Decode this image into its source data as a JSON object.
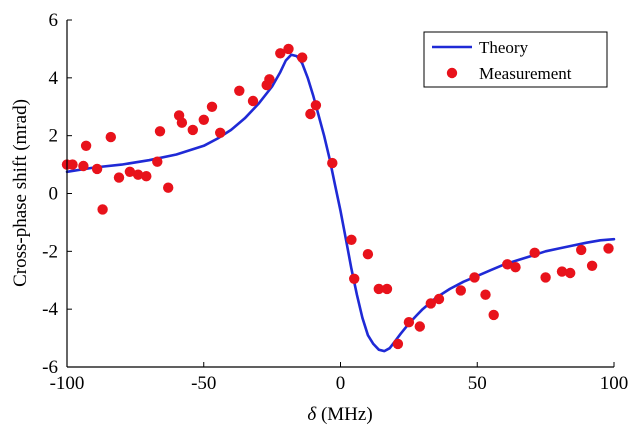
{
  "chart_data": {
    "type": "scatter",
    "xlabel_prefix": "δ",
    "xlabel_suffix": " (MHz)",
    "ylabel": "Cross-phase shift (mrad)",
    "xlim": [
      -100,
      100
    ],
    "ylim": [
      -6,
      6
    ],
    "xticks": [
      -100,
      -50,
      0,
      50,
      100
    ],
    "yticks": [
      -6,
      -4,
      -2,
      0,
      2,
      4,
      6
    ],
    "xtick_labels": [
      "-100",
      "-50",
      "0",
      "50",
      "100"
    ],
    "ytick_labels": [
      "-6",
      "-4",
      "-2",
      "0",
      "2",
      "4",
      "6"
    ],
    "grid": false,
    "legend_placement": "top-right",
    "series": [
      {
        "name": "Theory",
        "type": "line",
        "color": "#1f2ad6",
        "x": [
          -100,
          -90,
          -80,
          -70,
          -60,
          -50,
          -45,
          -40,
          -35,
          -30,
          -25,
          -22,
          -20,
          -18,
          -16,
          -14,
          -12,
          -10,
          -8,
          -6,
          -4,
          -2,
          0,
          2,
          4,
          6,
          8,
          10,
          12,
          14,
          16,
          18,
          20,
          22,
          25,
          28,
          30,
          35,
          40,
          45,
          50,
          55,
          60,
          65,
          70,
          75,
          80,
          85,
          90,
          95,
          100
        ],
        "y": [
          0.75,
          0.9,
          1.0,
          1.15,
          1.35,
          1.65,
          1.9,
          2.2,
          2.6,
          3.1,
          3.7,
          4.2,
          4.6,
          4.8,
          4.75,
          4.5,
          4.0,
          3.4,
          2.7,
          2.0,
          1.2,
          0.3,
          -0.6,
          -1.6,
          -2.6,
          -3.5,
          -4.3,
          -4.9,
          -5.2,
          -5.4,
          -5.45,
          -5.35,
          -5.1,
          -4.85,
          -4.5,
          -4.2,
          -4.0,
          -3.6,
          -3.3,
          -3.05,
          -2.85,
          -2.65,
          -2.45,
          -2.3,
          -2.15,
          -2.0,
          -1.9,
          -1.8,
          -1.7,
          -1.62,
          -1.58
        ]
      },
      {
        "name": "Measurement",
        "type": "scatter",
        "color": "#e8121b",
        "x": [
          -100,
          -98,
          -94,
          -93,
          -89,
          -87,
          -84,
          -81,
          -77,
          -74,
          -71,
          -67,
          -66,
          -63,
          -59,
          -58,
          -54,
          -50,
          -47,
          -44,
          -37,
          -32,
          -27,
          -26,
          -22,
          -19,
          -14,
          -11,
          -9,
          -3,
          4,
          5,
          10,
          14,
          17,
          21,
          25,
          29,
          33,
          36,
          44,
          49,
          53,
          56,
          61,
          64,
          71,
          75,
          81,
          84,
          88,
          92,
          98
        ],
        "y": [
          1.0,
          1.0,
          0.95,
          1.65,
          0.85,
          -0.55,
          1.95,
          0.55,
          0.75,
          0.65,
          0.6,
          1.1,
          2.15,
          0.2,
          2.7,
          2.45,
          2.2,
          2.55,
          3.0,
          2.1,
          3.55,
          3.2,
          3.75,
          3.95,
          4.85,
          5.0,
          4.7,
          2.75,
          3.05,
          1.05,
          -1.6,
          -2.95,
          -2.1,
          -3.3,
          -3.3,
          -5.2,
          -4.45,
          -4.6,
          -3.8,
          -3.65,
          -3.35,
          -2.9,
          -3.5,
          -4.2,
          -2.45,
          -2.55,
          -2.05,
          -2.9,
          -2.7,
          -2.75,
          -1.95,
          -2.5,
          -1.9
        ]
      }
    ]
  }
}
